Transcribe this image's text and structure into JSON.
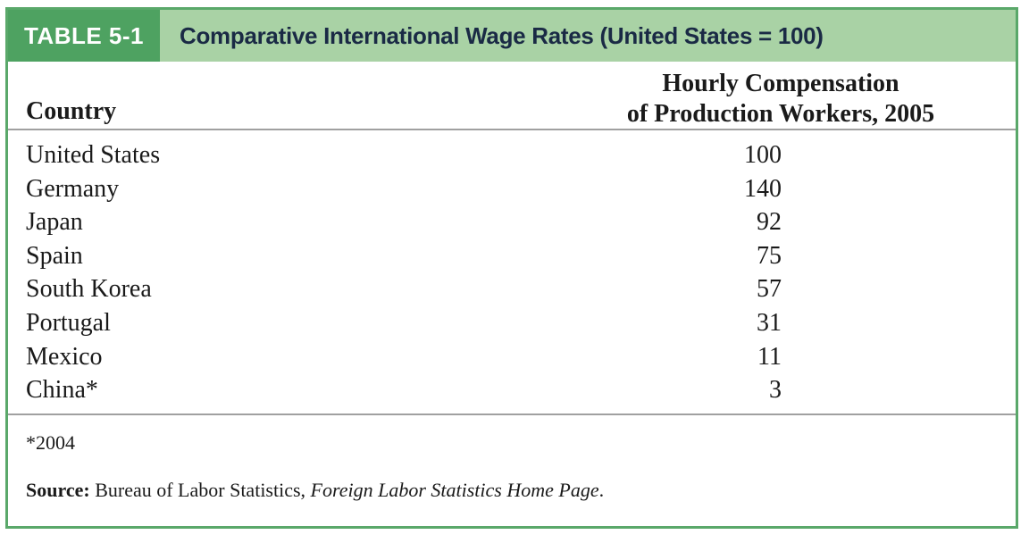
{
  "table": {
    "label": "TABLE 5-1",
    "title": "Comparative International Wage Rates (United States = 100)",
    "headers": {
      "country": "Country",
      "value_line1": "Hourly Compensation",
      "value_line2": "of Production Workers, 2005"
    },
    "rows": [
      {
        "country": "United States",
        "value": "100"
      },
      {
        "country": "Germany",
        "value": "140"
      },
      {
        "country": "Japan",
        "value": "92"
      },
      {
        "country": "Spain",
        "value": "75"
      },
      {
        "country": "South Korea",
        "value": "57"
      },
      {
        "country": "Portugal",
        "value": "31"
      },
      {
        "country": "Mexico",
        "value": "11"
      },
      {
        "country": "China*",
        "value": "3"
      }
    ],
    "footnote": "*2004",
    "source": {
      "label": "Source:",
      "text": " Bureau of Labor Statistics, ",
      "publication": "Foreign Labor Statistics Home Page",
      "end": "."
    }
  },
  "colors": {
    "border": "#5aa86a",
    "header_bg": "#a9d2a5",
    "label_bg": "#4ea261",
    "title_text": "#1a2a45"
  }
}
